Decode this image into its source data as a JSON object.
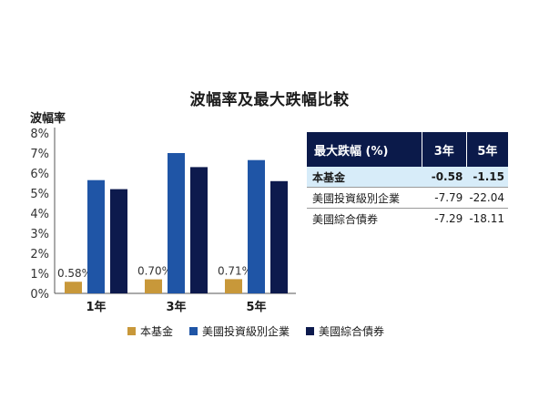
{
  "title": "波幅率及最大跌幅比較",
  "colors": {
    "fund": "#c8983a",
    "ig": "#1f55a6",
    "agg": "#0d1a4d",
    "table_header": "#0b1a4a",
    "highlight": "#d7ecf9"
  },
  "chart_data": [
    {
      "type": "bar",
      "ylabel": "波幅率",
      "ylim": [
        0,
        8
      ],
      "yticks": [
        "0%",
        "1%",
        "2%",
        "3%",
        "4%",
        "5%",
        "6%",
        "7%",
        "8%"
      ],
      "categories": [
        "1年",
        "3年",
        "5年"
      ],
      "series": [
        {
          "name": "本基金",
          "values": [
            0.58,
            0.7,
            0.71
          ],
          "labels": [
            "0.58%",
            "0.70%",
            "0.71%"
          ]
        },
        {
          "name": "美國投資級別企業",
          "values": [
            5.65,
            7.0,
            6.65
          ]
        },
        {
          "name": "美國綜合債券",
          "values": [
            5.2,
            6.3,
            5.6
          ]
        }
      ],
      "legend": "bottom",
      "grid": false
    },
    {
      "type": "table",
      "header": [
        "最大跌幅 (%)",
        "3年",
        "5年"
      ],
      "rows": [
        [
          "本基金",
          "-0.58",
          "-1.15"
        ],
        [
          "美國投資級別企業",
          "-7.79",
          "-22.04"
        ],
        [
          "美國綜合債券",
          "-7.29",
          "-18.11"
        ]
      ]
    }
  ]
}
